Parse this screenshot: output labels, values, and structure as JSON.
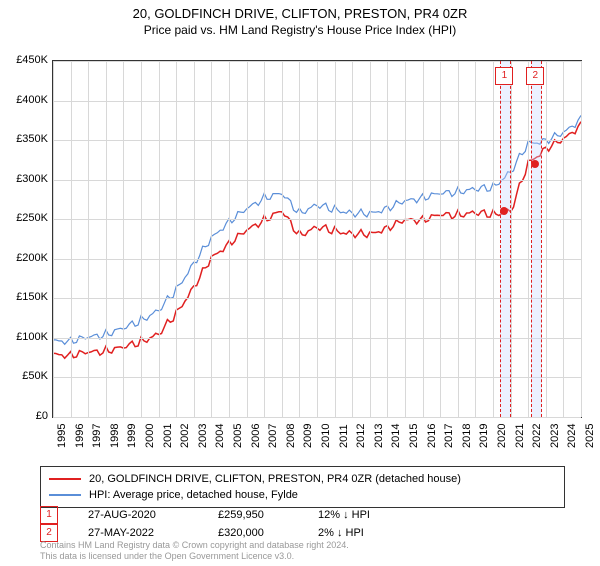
{
  "title": "20, GOLDFINCH DRIVE, CLIFTON, PRESTON, PR4 0ZR",
  "subtitle": "Price paid vs. HM Land Registry's House Price Index (HPI)",
  "chart": {
    "type": "line",
    "background_color": "#ffffff",
    "grid_color": "#d8d8d8",
    "border_color": "#333333",
    "ylim": [
      0,
      450000
    ],
    "ytick_step": 50000,
    "ytick_labels": [
      "£0",
      "£50K",
      "£100K",
      "£150K",
      "£200K",
      "£250K",
      "£300K",
      "£350K",
      "£400K",
      "£450K"
    ],
    "x_years": [
      1995,
      1996,
      1997,
      1998,
      1999,
      2000,
      2001,
      2002,
      2003,
      2004,
      2005,
      2006,
      2007,
      2008,
      2009,
      2010,
      2011,
      2012,
      2013,
      2014,
      2015,
      2016,
      2017,
      2018,
      2019,
      2020,
      2021,
      2022,
      2023,
      2024,
      2025
    ],
    "series": [
      {
        "name": "20, GOLDFINCH DRIVE, CLIFTON, PRESTON, PR4 0ZR (detached house)",
        "color": "#e02020",
        "line_width": 1.5,
        "values": [
          78000,
          79000,
          81000,
          84000,
          88000,
          95000,
          105000,
          130000,
          165000,
          200000,
          220000,
          235000,
          250000,
          260000,
          230000,
          240000,
          235000,
          232000,
          230000,
          240000,
          248000,
          250000,
          255000,
          256000,
          258000,
          256000,
          259950,
          320000,
          340000,
          350000,
          370000
        ]
      },
      {
        "name": "HPI: Average price, detached house, Fylde",
        "color": "#5a8ed8",
        "line_width": 1.2,
        "values": [
          95000,
          97000,
          100000,
          105000,
          112000,
          122000,
          135000,
          160000,
          195000,
          225000,
          248000,
          262000,
          278000,
          282000,
          258000,
          268000,
          262000,
          258000,
          256000,
          265000,
          272000,
          278000,
          282000,
          285000,
          288000,
          290000,
          310000,
          345000,
          350000,
          358000,
          378000
        ]
      }
    ],
    "markers": [
      {
        "id": "1",
        "year": 2020.65,
        "width_years": 0.5
      },
      {
        "id": "2",
        "year": 2022.4,
        "width_years": 0.5
      }
    ],
    "sale_points": [
      {
        "year": 2020.65,
        "price": 259950
      },
      {
        "year": 2022.4,
        "price": 320000
      }
    ]
  },
  "legend": {
    "items": [
      {
        "color": "#e02020",
        "label": "20, GOLDFINCH DRIVE, CLIFTON, PRESTON, PR4 0ZR (detached house)"
      },
      {
        "color": "#5a8ed8",
        "label": "HPI: Average price, detached house, Fylde"
      }
    ]
  },
  "sales": [
    {
      "id": "1",
      "date": "27-AUG-2020",
      "price": "£259,950",
      "hpi": "12% ↓ HPI"
    },
    {
      "id": "2",
      "date": "27-MAY-2022",
      "price": "£320,000",
      "hpi": "2% ↓ HPI"
    }
  ],
  "attribution_line1": "Contains HM Land Registry data © Crown copyright and database right 2024.",
  "attribution_line2": "This data is licensed under the Open Government Licence v3.0."
}
